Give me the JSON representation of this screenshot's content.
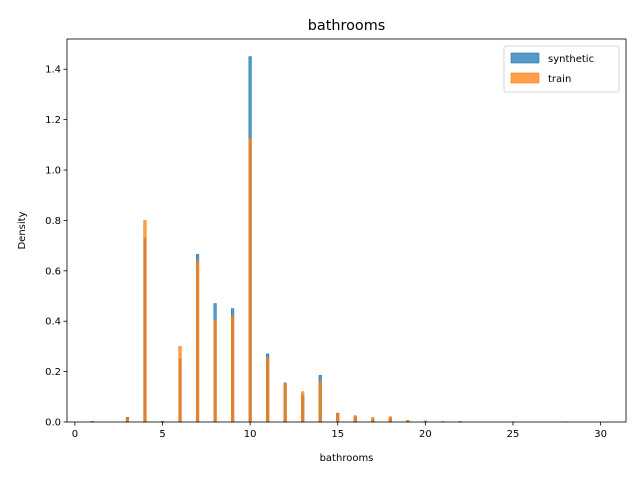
{
  "chart_data": {
    "type": "bar",
    "title": "bathrooms",
    "xlabel": "bathrooms",
    "ylabel": "Density",
    "xlim": [
      -0.45,
      31.45
    ],
    "ylim": [
      0,
      1.52
    ],
    "xticks": [
      0,
      5,
      10,
      15,
      20,
      25,
      30
    ],
    "yticks": [
      0.0,
      0.2,
      0.4,
      0.6,
      0.8,
      1.0,
      1.2,
      1.4
    ],
    "ytick_labels": [
      "0.0",
      "0.2",
      "0.4",
      "0.6",
      "0.8",
      "1.0",
      "1.2",
      "1.4"
    ],
    "bin_width": 0.145,
    "legend_position": "upper-right",
    "series": [
      {
        "name": "synthetic",
        "color": "#1f77b4",
        "x": [
          1,
          3,
          4,
          5,
          6,
          7,
          8,
          9,
          10,
          11,
          12,
          13,
          14,
          15,
          16,
          17,
          18,
          19,
          20,
          22
        ],
        "values": [
          0.002,
          0.018,
          0.73,
          0.003,
          0.25,
          0.665,
          0.47,
          0.45,
          1.45,
          0.27,
          0.155,
          0.105,
          0.185,
          0.035,
          0.02,
          0.01,
          0.015,
          0.005,
          0.004,
          0.002
        ]
      },
      {
        "name": "train",
        "color": "#ff7f0e",
        "x": [
          1,
          3,
          4,
          5,
          6,
          7,
          8,
          9,
          10,
          11,
          12,
          13,
          14,
          15,
          16,
          17,
          18,
          19,
          20,
          21,
          22,
          25,
          28
        ],
        "values": [
          0.003,
          0.014,
          0.8,
          0.002,
          0.3,
          0.64,
          0.405,
          0.42,
          1.125,
          0.255,
          0.153,
          0.12,
          0.16,
          0.033,
          0.025,
          0.018,
          0.021,
          0.007,
          0.004,
          0.002,
          0.002,
          0.001,
          0.001
        ]
      }
    ]
  }
}
